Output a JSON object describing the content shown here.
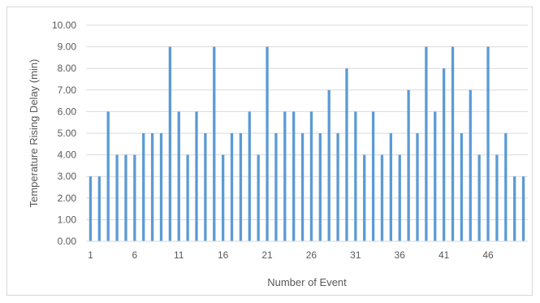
{
  "chart_data": {
    "type": "bar",
    "title": "",
    "xlabel": "Number of Event",
    "ylabel": "Temperature Rising Delay (min)",
    "ylim": [
      0,
      10
    ],
    "y_ticks": [
      "0.00",
      "1.00",
      "2.00",
      "3.00",
      "4.00",
      "5.00",
      "6.00",
      "7.00",
      "8.00",
      "9.00",
      "10.00"
    ],
    "x_tick_labels": [
      "1",
      "6",
      "11",
      "16",
      "21",
      "26",
      "31",
      "36",
      "41",
      "46"
    ],
    "categories": [
      1,
      2,
      3,
      4,
      5,
      6,
      7,
      8,
      9,
      10,
      11,
      12,
      13,
      14,
      15,
      16,
      17,
      18,
      19,
      20,
      21,
      22,
      23,
      24,
      25,
      26,
      27,
      28,
      29,
      30,
      31,
      32,
      33,
      34,
      35,
      36,
      37,
      38,
      39,
      40,
      41,
      42,
      43,
      44,
      45,
      46,
      47,
      48,
      49,
      50
    ],
    "values": [
      3,
      3,
      6,
      4,
      4,
      4,
      5,
      5,
      5,
      9,
      6,
      4,
      6,
      5,
      9,
      4,
      5,
      5,
      6,
      4,
      9,
      5,
      6,
      6,
      5,
      6,
      5,
      7,
      5,
      8,
      6,
      4,
      6,
      4,
      5,
      4,
      7,
      5,
      9,
      6,
      8,
      9,
      5,
      7,
      4,
      9,
      4,
      5,
      3,
      3
    ],
    "grid": true,
    "bar_color": "#5b9bd5",
    "grid_color": "#d9d9d9"
  }
}
